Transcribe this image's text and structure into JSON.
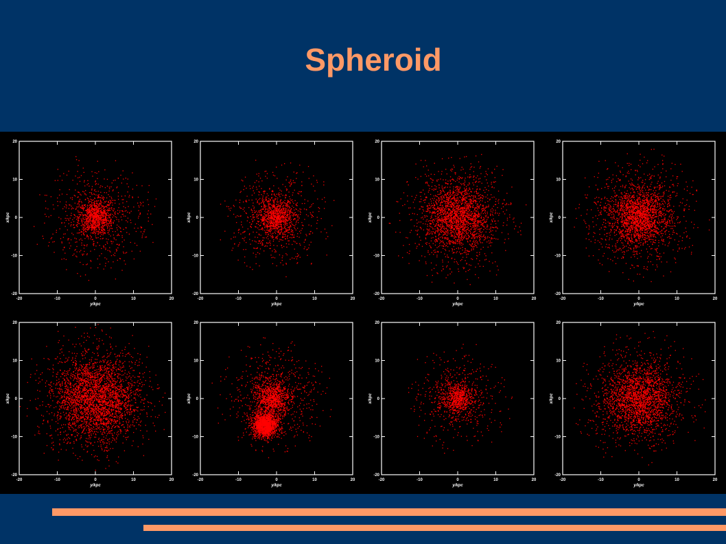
{
  "slide": {
    "title": "Spheroid",
    "colors": {
      "background": "#003366",
      "title": "#ff9966",
      "accent_bars": "#ff9966",
      "panel": "#000000",
      "points": "#ff0000",
      "axes": "#ffffff"
    }
  },
  "chart_data": [
    {
      "type": "scatter",
      "xlabel": "y/kpc",
      "ylabel": "x/kpc",
      "xlim": [
        -20,
        20
      ],
      "ylim": [
        -20,
        20
      ],
      "xticks": [
        -20,
        -10,
        0,
        10,
        20
      ],
      "yticks": [
        -20,
        -10,
        0,
        10,
        20
      ],
      "grid": false,
      "color": "#ff0000",
      "clumps": [
        {
          "center": [
            0,
            0
          ],
          "core_radius": 4,
          "halo_radius": 18,
          "density": "medium"
        }
      ]
    },
    {
      "type": "scatter",
      "xlabel": "y/kpc",
      "ylabel": "x/kpc",
      "xlim": [
        -20,
        20
      ],
      "ylim": [
        -20,
        20
      ],
      "xticks": [
        -20,
        -10,
        0,
        10,
        20
      ],
      "yticks": [
        -20,
        -10,
        0,
        10,
        20
      ],
      "grid": false,
      "color": "#ff0000",
      "clumps": [
        {
          "center": [
            0,
            0
          ],
          "core_radius": 4,
          "halo_radius": 17,
          "density": "medium"
        }
      ]
    },
    {
      "type": "scatter",
      "xlabel": "y/kpc",
      "ylabel": "x/kpc",
      "xlim": [
        -20,
        20
      ],
      "ylim": [
        -20,
        20
      ],
      "xticks": [
        -20,
        -10,
        0,
        10,
        20
      ],
      "yticks": [
        -20,
        -10,
        0,
        10,
        20
      ],
      "grid": false,
      "color": "#ff0000",
      "clumps": [
        {
          "center": [
            0,
            0
          ],
          "core_radius": 7,
          "halo_radius": 19,
          "density": "high"
        }
      ]
    },
    {
      "type": "scatter",
      "xlabel": "y/kpc",
      "ylabel": "x/kpc",
      "xlim": [
        -20,
        20
      ],
      "ylim": [
        -20,
        20
      ],
      "xticks": [
        -20,
        -10,
        0,
        10,
        20
      ],
      "yticks": [
        -20,
        -10,
        0,
        10,
        20
      ],
      "grid": false,
      "color": "#ff0000",
      "clumps": [
        {
          "center": [
            0,
            0
          ],
          "core_radius": 6,
          "halo_radius": 19,
          "density": "high"
        }
      ]
    },
    {
      "type": "scatter",
      "xlabel": "y/kpc",
      "ylabel": "x/kpc",
      "xlim": [
        -20,
        20
      ],
      "ylim": [
        -20,
        20
      ],
      "xticks": [
        -20,
        -10,
        0,
        10,
        20
      ],
      "yticks": [
        -20,
        -10,
        0,
        10,
        20
      ],
      "grid": false,
      "color": "#ff0000",
      "clumps": [
        {
          "center": [
            0,
            0
          ],
          "core_radius": 9,
          "halo_radius": 20,
          "density": "very high"
        }
      ]
    },
    {
      "type": "scatter",
      "xlabel": "y/kpc",
      "ylabel": "x/kpc",
      "xlim": [
        -20,
        20
      ],
      "ylim": [
        -20,
        20
      ],
      "xticks": [
        -20,
        -10,
        0,
        10,
        20
      ],
      "yticks": [
        -20,
        -10,
        0,
        10,
        20
      ],
      "grid": false,
      "color": "#ff0000",
      "clumps": [
        {
          "center": [
            -1,
            0
          ],
          "core_radius": 4,
          "halo_radius": 17,
          "density": "medium"
        },
        {
          "center": [
            -3,
            -7
          ],
          "core_radius": 2.5,
          "halo_radius": 5,
          "density": "medium"
        }
      ]
    },
    {
      "type": "scatter",
      "xlabel": "y/kpc",
      "ylabel": "x/kpc",
      "xlim": [
        -20,
        20
      ],
      "ylim": [
        -20,
        20
      ],
      "xticks": [
        -20,
        -10,
        0,
        10,
        20
      ],
      "yticks": [
        -20,
        -10,
        0,
        10,
        20
      ],
      "grid": false,
      "color": "#ff0000",
      "clumps": [
        {
          "center": [
            0,
            0
          ],
          "core_radius": 3.5,
          "halo_radius": 16,
          "density": "low"
        }
      ]
    },
    {
      "type": "scatter",
      "xlabel": "y/kpc",
      "ylabel": "x/kpc",
      "xlim": [
        -20,
        20
      ],
      "ylim": [
        -20,
        20
      ],
      "xticks": [
        -20,
        -10,
        0,
        10,
        20
      ],
      "yticks": [
        -20,
        -10,
        0,
        10,
        20
      ],
      "grid": false,
      "color": "#ff0000",
      "clumps": [
        {
          "center": [
            0,
            0
          ],
          "core_radius": 7,
          "halo_radius": 19,
          "density": "high"
        }
      ]
    }
  ]
}
